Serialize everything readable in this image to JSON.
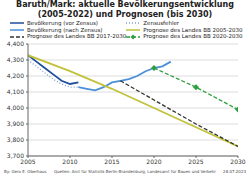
{
  "chart_data": {
    "type": "line",
    "title": "Baruth/Mark: aktuelle Bevölkerungsentwicklung (2005-2022) und Prognosen (bis 2030)",
    "xlim": [
      2005,
      2030
    ],
    "xticks": [
      2005,
      2010,
      2015,
      2020,
      2025,
      2030
    ],
    "ylim": [
      3700,
      4400
    ],
    "yticks": [
      {
        "value": 3700,
        "label": "3,700"
      },
      {
        "value": 3800,
        "label": "3,800"
      },
      {
        "value": 3900,
        "label": "3,900"
      },
      {
        "value": 4000,
        "label": "4,000"
      },
      {
        "value": 4100,
        "label": "4,100"
      },
      {
        "value": 4200,
        "label": "4,200"
      },
      {
        "value": 4300,
        "label": "4,300"
      },
      {
        "value": 4400,
        "label": "4,400"
      }
    ],
    "grid": true,
    "series": [
      {
        "name": "Bevölkerung (vor Zensus)",
        "color": "#1f4e9c",
        "line_style": "solid",
        "marker": "none",
        "x": [
          2005,
          2006,
          2007,
          2008,
          2009,
          2010,
          2011
        ],
        "values": [
          4330,
          4290,
          4250,
          4210,
          4170,
          4150,
          4160
        ]
      },
      {
        "name": "Zensusfehler",
        "color": "#7f9fcf",
        "line_style": "dotted",
        "marker": "none",
        "x": [
          2005,
          2006,
          2007,
          2008,
          2009,
          2010,
          2011
        ],
        "values": [
          4300,
          4260,
          4220,
          4180,
          4150,
          4130,
          4130
        ]
      },
      {
        "name": "Bevölkerung (nach Zensus)",
        "color": "#4a90d9",
        "line_style": "solid",
        "marker": "none",
        "x": [
          2011,
          2012,
          2013,
          2014,
          2015,
          2016,
          2017,
          2018,
          2019,
          2020,
          2021,
          2022
        ],
        "values": [
          4130,
          4120,
          4110,
          4130,
          4160,
          4170,
          4180,
          4200,
          4230,
          4250,
          4260,
          4290
        ]
      },
      {
        "name": "Prognose des Landes BB 2005-2030",
        "color": "#c2c23a",
        "line_style": "solid",
        "marker": "none",
        "x": [
          2005,
          2010,
          2015,
          2020,
          2025,
          2030
        ],
        "values": [
          4330,
          4230,
          4120,
          4000,
          3880,
          3760
        ]
      },
      {
        "name": "Prognose des Landes BB 2017-2030",
        "color": "#333333",
        "line_style": "dashed",
        "marker": "none",
        "x": [
          2016,
          2020,
          2025,
          2030
        ],
        "values": [
          4170,
          4050,
          3900,
          3760
        ]
      },
      {
        "name": "Prognose des Landes BB 2020-2030",
        "color": "#2e9e3e",
        "line_style": "dashed",
        "marker": "diamond",
        "x": [
          2020,
          2025,
          2030
        ],
        "values": [
          4250,
          4130,
          3990
        ]
      }
    ],
    "footer": {
      "author": "By: Gero E. Oberhaus",
      "source": "Quellen: Amt für Statistik Berlin-Brandenburg, Landesamt für Bauen und Verkehr",
      "date": "28.07.2023"
    }
  }
}
